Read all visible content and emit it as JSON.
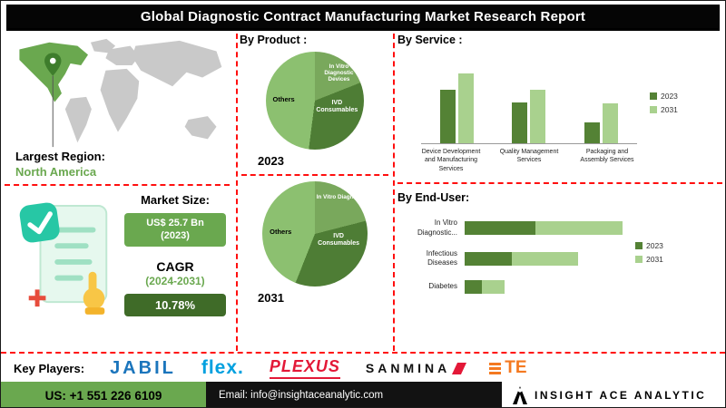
{
  "title": "Global Diagnostic Contract Manufacturing Market Research Report",
  "region": {
    "label": "Largest Region:",
    "value": "North America"
  },
  "market": {
    "size_label": "Market Size:",
    "size_value": "US$ 25.7 Bn",
    "size_year": "(2023)",
    "cagr_label": "CAGR",
    "cagr_period": "(2024-2031)",
    "cagr_value": "10.78%"
  },
  "sections": {
    "product_title": "By Product :",
    "service_title": "By  Service :",
    "end_user_title": "By End-User:"
  },
  "key_players": {
    "label": "Key Players:",
    "players": [
      "JABIL",
      "flex.",
      "PLEXUS",
      "SANMINA",
      "TE"
    ]
  },
  "footer": {
    "phone": "US: +1 551 226 6109",
    "email": "Email: info@insightaceanalytic.com",
    "brand": "INSIGHT ACE ANALYTIC"
  },
  "colors": {
    "accent_green": "#6aa84f",
    "dark_green": "#3f6b28",
    "light_green": "#a9d18e",
    "divider_red": "#ff0f0f"
  },
  "chart_data": [
    {
      "type": "pie",
      "title": "By Product 2023",
      "year_label": "2023",
      "labels": [
        "In Vitro Diagnostic Devices",
        "IVD Consumables",
        "Others"
      ],
      "values": [
        19,
        33,
        48
      ],
      "colors": [
        "#79a85c",
        "#4e7d35",
        "#8cc070"
      ]
    },
    {
      "type": "pie",
      "title": "By Product 2031",
      "year_label": "2031",
      "labels": [
        "In Vitro Diagnos...",
        "IVD Consumables",
        "Others"
      ],
      "values": [
        21,
        35,
        44
      ],
      "colors": [
        "#79a85c",
        "#4e7d35",
        "#8cc070"
      ]
    },
    {
      "type": "bar",
      "title": "By Service",
      "categories": [
        "Device Development and Manufacturing Services",
        "Quality Management Services",
        "Packaging and Assembly Services"
      ],
      "ymax": 100,
      "ylim": [
        0,
        100
      ],
      "grid": false,
      "legend_position": "right",
      "series": [
        {
          "name": "2023",
          "color": "#548235",
          "values": [
            65,
            50,
            25
          ]
        },
        {
          "name": "2031",
          "color": "#a9d18e",
          "values": [
            85,
            65,
            48
          ]
        }
      ]
    },
    {
      "type": "bar-horizontal",
      "title": "By End-User",
      "categories": [
        "In Vitro Diagnostic...",
        "Infectious Diseases",
        "Diabetes"
      ],
      "ymax": 100,
      "xlim": [
        0,
        100
      ],
      "grid": false,
      "legend_position": "right",
      "series": [
        {
          "name": "2023",
          "color": "#548235",
          "values": [
            45,
            30,
            11
          ]
        },
        {
          "name": "2031",
          "color": "#a9d18e",
          "values": [
            100,
            72,
            25
          ]
        }
      ]
    }
  ]
}
